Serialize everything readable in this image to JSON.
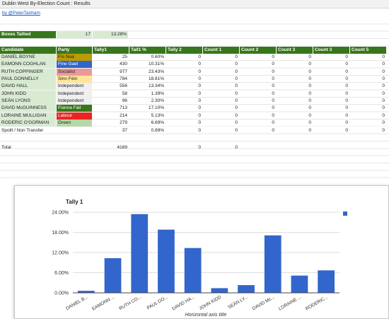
{
  "window": {
    "title": "Dublin West By-Election Count : Results",
    "author_link": "by @PeterTanham"
  },
  "boxes_tallied": {
    "label": "Boxes Tallied",
    "count": "17",
    "percent": "13.28%"
  },
  "table": {
    "headers": [
      "Candidate",
      "Party",
      "Tally1",
      "Tall1 %",
      "Tally 2",
      "Count 1",
      "Count 2",
      "Count 3",
      "Count 3",
      "Count 5"
    ],
    "rows": [
      {
        "candidate": "DANIEL BOYNE",
        "party": "Fís Nua",
        "party_color": "#b99c07",
        "tally1": "25",
        "pct": "0.60%",
        "counts": [
          "0",
          "0",
          "0",
          "0",
          "0",
          "0"
        ]
      },
      {
        "candidate": "EAMONN COGHLAN",
        "party": "Fine Gael",
        "party_color": "#2f67c9",
        "tally1": "430",
        "pct": "10.31%",
        "counts": [
          "0",
          "0",
          "0",
          "0",
          "0",
          "0"
        ]
      },
      {
        "candidate": "RUTH COPPINGER",
        "party": "Socialist",
        "party_color": "#ea9999",
        "tally1": "977",
        "pct": "23.43%",
        "counts": [
          "0",
          "0",
          "0",
          "0",
          "0",
          "0"
        ]
      },
      {
        "candidate": "PAUL DONNELLY",
        "party": "Sinn Féin",
        "party_color": "#ffe599",
        "tally1": "784",
        "pct": "18.81%",
        "counts": [
          "0",
          "0",
          "0",
          "0",
          "0",
          "0"
        ]
      },
      {
        "candidate": "DAVID HALL",
        "party": "Independent",
        "party_color": "#efefef",
        "tally1": "556",
        "pct": "13.34%",
        "counts": [
          "0",
          "0",
          "0",
          "0",
          "0",
          "0"
        ]
      },
      {
        "candidate": "JOHN KIDD",
        "party": "Independent",
        "party_color": "#efefef",
        "tally1": "58",
        "pct": "1.39%",
        "counts": [
          "0",
          "0",
          "0",
          "0",
          "0",
          "0"
        ]
      },
      {
        "candidate": "SEÁN LYONS",
        "party": "Independent",
        "party_color": "#efefef",
        "tally1": "96",
        "pct": "2.30%",
        "counts": [
          "0",
          "0",
          "0",
          "0",
          "0",
          "0"
        ]
      },
      {
        "candidate": "DAVID McGUINNESS",
        "party": "Fianna Fáil",
        "party_color": "#38761d",
        "tally1": "713",
        "pct": "17.10%",
        "counts": [
          "0",
          "0",
          "0",
          "0",
          "0",
          "0"
        ]
      },
      {
        "candidate": "LORAINE MULLIGAN",
        "party": "Labour",
        "party_color": "#e8261f",
        "tally1": "214",
        "pct": "5.13%",
        "counts": [
          "0",
          "0",
          "0",
          "0",
          "0",
          "0"
        ]
      },
      {
        "candidate": "RODERIC O'GORMAN",
        "party": "Green",
        "party_color": "#b6d7a8",
        "tally1": "279",
        "pct": "6.69%",
        "counts": [
          "0",
          "0",
          "0",
          "0",
          "0",
          "0"
        ]
      },
      {
        "candidate": "Spoilt / Non Transfer",
        "party": "",
        "party_color": "",
        "tally1": "37",
        "pct": "0.89%",
        "counts": [
          "0",
          "0",
          "0",
          "0",
          "0",
          "0"
        ]
      }
    ],
    "total": {
      "label": "Total",
      "tally1": "4169",
      "tally2": "0",
      "count1": "0"
    }
  },
  "colors": {
    "header_green": "#38761d",
    "candidate_green": "#d9ead3",
    "bar_blue": "#3366cc"
  },
  "chart_data": {
    "type": "bar",
    "title": "Tally 1",
    "xlabel": "Horizontal axis title",
    "ylabel": "",
    "categories": [
      "DANIEL B...",
      "EAMONN ...",
      "RUTH CO...",
      "PAUL DO...",
      "DAVID HA...",
      "JOHN KIDD",
      "SEÁN LY...",
      "DAVID Mc...",
      "LORAINE ...",
      "RODERIC..."
    ],
    "values": [
      0.6,
      10.31,
      23.43,
      18.81,
      13.34,
      1.39,
      2.3,
      17.1,
      5.13,
      6.69
    ],
    "unit": "%",
    "yticks": [
      "0.00%",
      "6.00%",
      "12.00%",
      "18.00%",
      "24.00%"
    ],
    "ylim": [
      0,
      24
    ],
    "grid": true,
    "legend_position": "right"
  }
}
